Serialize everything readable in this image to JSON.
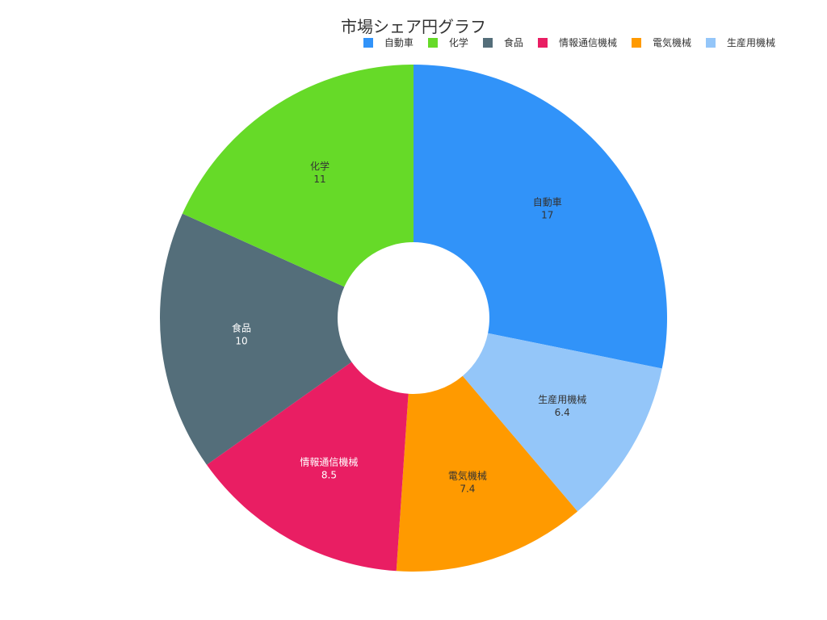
{
  "chart_data": {
    "type": "pie",
    "title": "市場シェア円グラフ",
    "hole": true,
    "legend_position": "top-right",
    "slices": [
      {
        "label": "自動車",
        "value": 17,
        "color": "#3193F9",
        "text_color": "#333333"
      },
      {
        "label": "生産用機械",
        "value": 6.4,
        "color": "#94C6F9",
        "text_color": "#333333"
      },
      {
        "label": "電気機械",
        "value": 7.4,
        "color": "#FF9A00",
        "text_color": "#333333"
      },
      {
        "label": "情報通信機械",
        "value": 8.5,
        "color": "#E91E63",
        "text_color": "#ffffff"
      },
      {
        "label": "食品",
        "value": 10,
        "color": "#546E7A",
        "text_color": "#ffffff"
      },
      {
        "label": "化学",
        "value": 11,
        "color": "#66DA28",
        "text_color": "#333333"
      }
    ],
    "legend": [
      {
        "label": "自動車",
        "color": "#3193F9"
      },
      {
        "label": "化学",
        "color": "#66DA28"
      },
      {
        "label": "食品",
        "color": "#546E7A"
      },
      {
        "label": "情報通信機械",
        "color": "#E91E63"
      },
      {
        "label": "電気機械",
        "color": "#FF9A00"
      },
      {
        "label": "生産用機械",
        "color": "#94C6F9"
      }
    ]
  }
}
